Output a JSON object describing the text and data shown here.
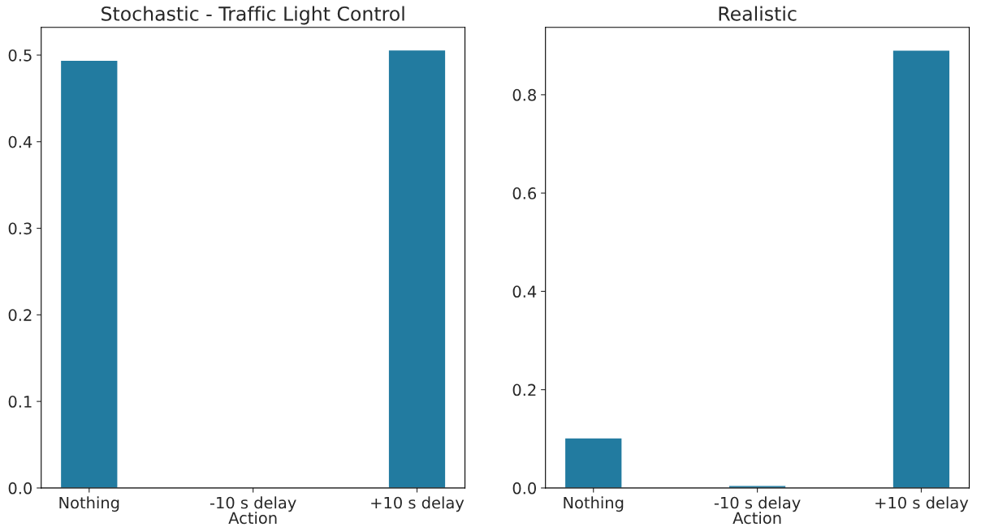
{
  "chart_data": [
    {
      "type": "bar",
      "title": "Stochastic - Traffic Light Control",
      "xlabel": "Action",
      "categories": [
        "Nothing",
        "-10 s delay",
        "+10 s delay"
      ],
      "values": [
        0.494,
        null,
        0.506
      ],
      "color": "#227ba0",
      "ylim": [
        0,
        0.532
      ],
      "yticks": [
        {
          "value": 0,
          "label": "0.0"
        },
        0.1,
        0.2,
        0.3,
        0.4,
        0.5
      ],
      "grid": false
    },
    {
      "type": "bar",
      "title": "Realistic",
      "xlabel": "Action",
      "categories": [
        "Nothing",
        "-10 s delay",
        "+10 s delay"
      ],
      "values": [
        0.102,
        0.005,
        0.891
      ],
      "color": "#227ba0",
      "ylim": [
        0,
        0.937
      ],
      "yticks": [
        {
          "value": 0,
          "label": "0.0"
        },
        0.2,
        0.4,
        0.6,
        0.8
      ],
      "grid": false
    }
  ]
}
